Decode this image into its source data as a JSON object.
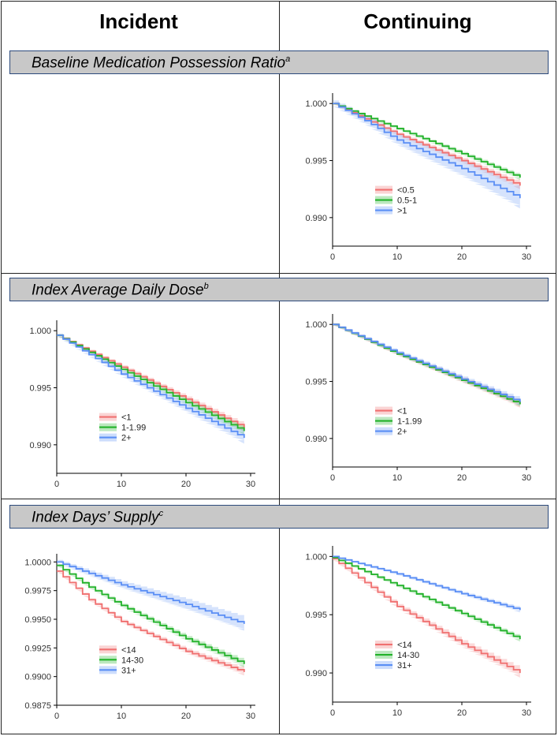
{
  "columns": {
    "incident": "Incident",
    "continuing": "Continuing"
  },
  "sections": [
    {
      "title": "Baseline Medication Possession Ratio",
      "superscript": "a"
    },
    {
      "title": "Index Average Daily Dose",
      "superscript": "b"
    },
    {
      "title": "Index Days’ Supply",
      "superscript": "c"
    }
  ],
  "colors": {
    "red": "#f07070",
    "green": "#22b22a",
    "blue": "#5a8ef5"
  },
  "chart_data": [
    {
      "id": "mpr-continuing",
      "type": "line",
      "section": "Baseline Medication Possession Ratio",
      "column": "Continuing",
      "xlim": [
        0,
        30
      ],
      "ylim": [
        0.9875,
        1.0005
      ],
      "xticks": [
        0,
        10,
        20,
        30
      ],
      "yticks": [
        1.0,
        0.995,
        0.99
      ],
      "ytick_labels": [
        "1.000",
        "0.995",
        "0.990"
      ],
      "series": [
        {
          "name": "<0.5",
          "color": "red",
          "x": [
            0,
            10,
            20,
            29
          ],
          "y": [
            1.0,
            0.9973,
            0.995,
            0.9928
          ],
          "band": 0.0003
        },
        {
          "name": "0.5-1",
          "color": "green",
          "x": [
            0,
            10,
            20,
            29
          ],
          "y": [
            1.0,
            0.9978,
            0.9956,
            0.9935
          ],
          "band": 0.0002
        },
        {
          "name": ">1",
          "color": "blue",
          "x": [
            0,
            5,
            10,
            20,
            29
          ],
          "y": [
            1.0,
            0.9985,
            0.9968,
            0.9943,
            0.9917
          ],
          "band": 0.0009
        }
      ]
    },
    {
      "id": "dose-incident",
      "type": "line",
      "section": "Index Average Daily Dose",
      "column": "Incident",
      "xlim": [
        0,
        30
      ],
      "ylim": [
        0.9875,
        1.0005
      ],
      "xticks": [
        0,
        10,
        20,
        30
      ],
      "yticks": [
        1.0,
        0.995,
        0.99
      ],
      "ytick_labels": [
        "1.000",
        "0.995",
        "0.990"
      ],
      "series": [
        {
          "name": "<1",
          "color": "red",
          "x": [
            0,
            10,
            20,
            29
          ],
          "y": [
            0.9996,
            0.9968,
            0.994,
            0.9915
          ],
          "band": 0.0003
        },
        {
          "name": "1-1.99",
          "color": "green",
          "x": [
            0,
            10,
            20,
            29
          ],
          "y": [
            0.9996,
            0.9966,
            0.9937,
            0.9912
          ],
          "band": 0.0003
        },
        {
          "name": "2+",
          "color": "blue",
          "x": [
            0,
            10,
            20,
            29
          ],
          "y": [
            0.9996,
            0.9962,
            0.9932,
            0.9906
          ],
          "band": 0.0005
        }
      ]
    },
    {
      "id": "dose-continuing",
      "type": "line",
      "section": "Index Average Daily Dose",
      "column": "Continuing",
      "xlim": [
        0,
        30
      ],
      "ylim": [
        0.9875,
        1.0005
      ],
      "xticks": [
        0,
        10,
        20,
        30
      ],
      "yticks": [
        1.0,
        0.995,
        0.99
      ],
      "ytick_labels": [
        "1.000",
        "0.995",
        "0.990"
      ],
      "series": [
        {
          "name": "<1",
          "color": "red",
          "x": [
            0,
            10,
            20,
            29
          ],
          "y": [
            1.0,
            0.9974,
            0.9951,
            0.993
          ],
          "band": 0.0003
        },
        {
          "name": "1-1.99",
          "color": "green",
          "x": [
            0,
            10,
            20,
            29
          ],
          "y": [
            1.0,
            0.9974,
            0.9951,
            0.993
          ],
          "band": 0.0002
        },
        {
          "name": "2+",
          "color": "blue",
          "x": [
            0,
            10,
            20,
            29
          ],
          "y": [
            1.0,
            0.9975,
            0.9952,
            0.9932
          ],
          "band": 0.0003
        }
      ]
    },
    {
      "id": "supply-incident",
      "type": "line",
      "section": "Index Days’ Supply",
      "column": "Incident",
      "xlim": [
        0,
        30
      ],
      "ylim": [
        0.9875,
        1.0003
      ],
      "xticks": [
        0,
        10,
        20,
        30
      ],
      "yticks": [
        1.0,
        0.9975,
        0.995,
        0.9925,
        0.99,
        0.9875
      ],
      "ytick_labels": [
        "1.0000",
        "0.9975",
        "0.9950",
        "0.9925",
        "0.9900",
        "0.9875"
      ],
      "series": [
        {
          "name": "<14",
          "color": "red",
          "x": [
            0,
            5,
            10,
            20,
            29
          ],
          "y": [
            0.9992,
            0.9967,
            0.9948,
            0.9922,
            0.9904
          ],
          "band": 0.0003
        },
        {
          "name": "14-30",
          "color": "green",
          "x": [
            0,
            5,
            10,
            20,
            29
          ],
          "y": [
            0.9997,
            0.9978,
            0.9962,
            0.9933,
            0.9911
          ],
          "band": 0.0003
        },
        {
          "name": "31+",
          "color": "blue",
          "x": [
            0,
            5,
            10,
            20,
            29
          ],
          "y": [
            1.0,
            0.999,
            0.998,
            0.9963,
            0.9946
          ],
          "band": 0.0006
        }
      ]
    },
    {
      "id": "supply-continuing",
      "type": "line",
      "section": "Index Days’ Supply",
      "column": "Continuing",
      "xlim": [
        0,
        30
      ],
      "ylim": [
        0.9875,
        1.0005
      ],
      "xticks": [
        0,
        10,
        20,
        30
      ],
      "yticks": [
        1.0,
        0.995,
        0.99
      ],
      "ytick_labels": [
        "1.000",
        "0.995",
        "0.990"
      ],
      "series": [
        {
          "name": "<14",
          "color": "red",
          "x": [
            0,
            10,
            20,
            29
          ],
          "y": [
            0.9998,
            0.9957,
            0.9925,
            0.99
          ],
          "band": 0.0004
        },
        {
          "name": "14-30",
          "color": "green",
          "x": [
            0,
            10,
            20,
            29
          ],
          "y": [
            0.9999,
            0.9975,
            0.9951,
            0.9929
          ],
          "band": 0.0002
        },
        {
          "name": "31+",
          "color": "blue",
          "x": [
            0,
            10,
            20,
            29
          ],
          "y": [
            1.0,
            0.9985,
            0.9968,
            0.9954
          ],
          "band": 0.0002
        }
      ]
    }
  ]
}
